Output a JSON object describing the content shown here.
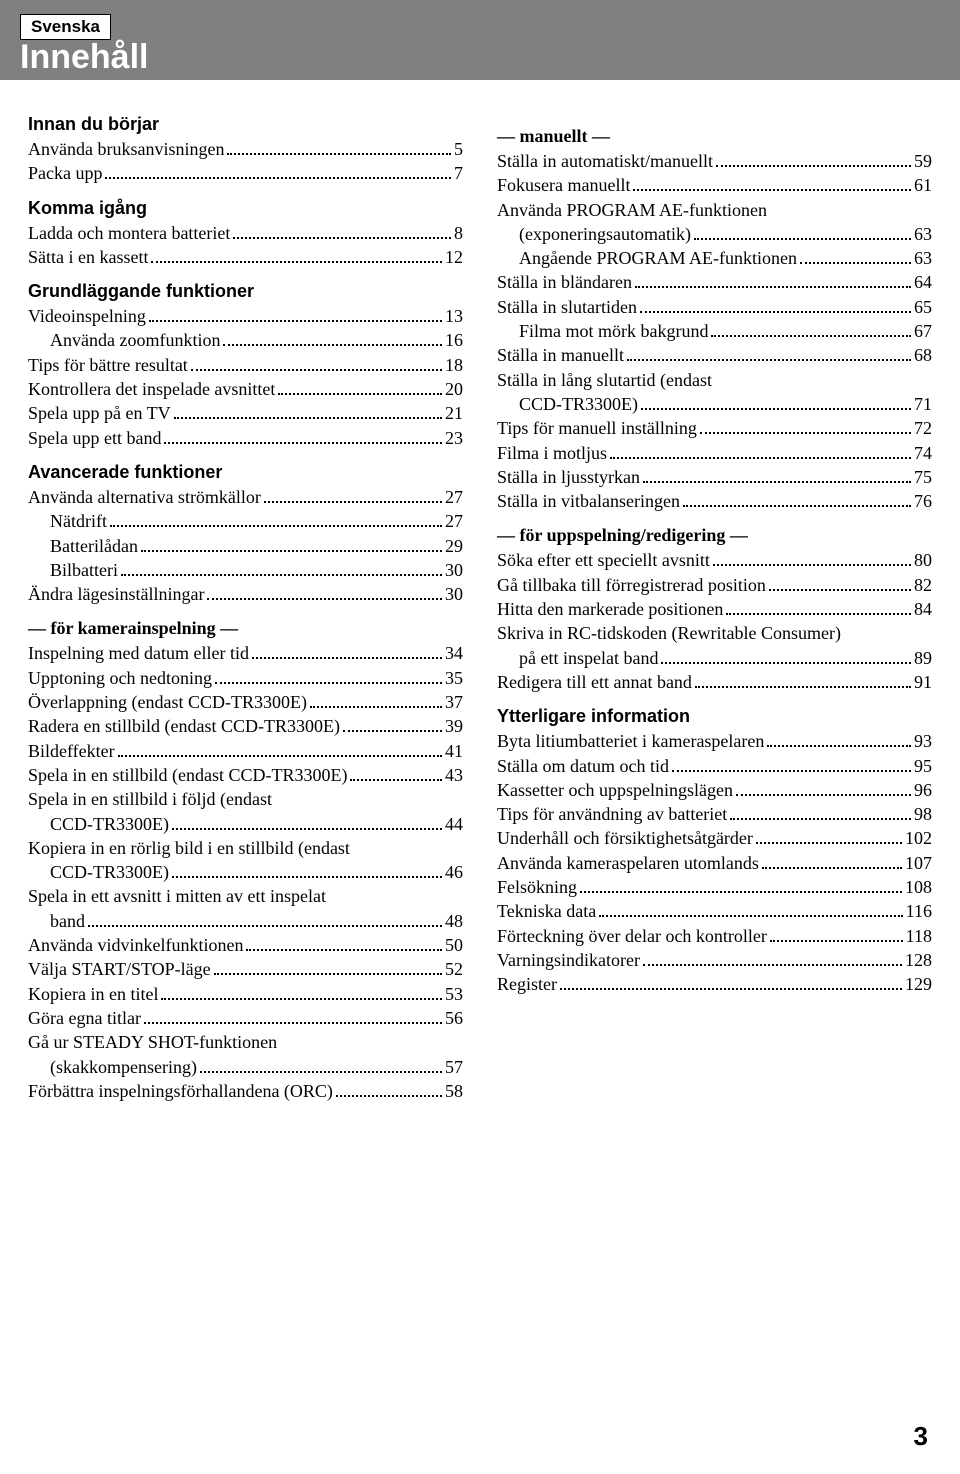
{
  "header": {
    "language": "Svenska",
    "title": "Innehåll"
  },
  "page_number": "3",
  "col1": {
    "sec1": {
      "title": "Innan du börjar"
    },
    "sec1_items": [
      {
        "label": "Använda bruksanvisningen",
        "page": "5"
      },
      {
        "label": "Packa upp",
        "page": "7"
      }
    ],
    "sec2": {
      "title": "Komma igång"
    },
    "sec2_items": [
      {
        "label": "Ladda och montera batteriet",
        "page": "8"
      },
      {
        "label": "Sätta i en kassett",
        "page": "12"
      }
    ],
    "sec3": {
      "title": "Grundläggande funktioner"
    },
    "sec3_items": [
      {
        "label": "Videoinspelning",
        "page": "13"
      },
      {
        "label": "Använda zoomfunktion",
        "page": "16",
        "indent": true
      },
      {
        "label": "Tips för bättre resultat",
        "page": "18"
      },
      {
        "label": "Kontrollera det inspelade avsnittet",
        "page": "20"
      },
      {
        "label": "Spela upp på en TV",
        "page": "21"
      },
      {
        "label": "Spela upp ett band",
        "page": "23"
      }
    ],
    "sec4": {
      "title": "Avancerade funktioner"
    },
    "sec4_items": [
      {
        "label": "Använda alternativa strömkällor",
        "page": "27"
      },
      {
        "label": "Nätdrift",
        "page": "27",
        "indent": true
      },
      {
        "label": "Batterilådan",
        "page": "29",
        "indent": true
      },
      {
        "label": "Bilbatteri",
        "page": "30",
        "indent": true
      },
      {
        "label": "Ändra lägesinställningar",
        "page": "30"
      }
    ],
    "sub1": {
      "title": "— för kamerainspelning —"
    },
    "sub1_items": [
      {
        "label": "Inspelning med datum eller tid",
        "page": "34"
      },
      {
        "label": "Upptoning och nedtoning",
        "page": "35"
      },
      {
        "label": "Överlappning (endast CCD-TR3300E)",
        "page": "37"
      },
      {
        "label": "Radera en stillbild (endast CCD-TR3300E)",
        "page": "39"
      },
      {
        "label": "Bildeffekter",
        "page": "41"
      },
      {
        "label": "Spela in en stillbild (endast CCD-TR3300E)",
        "page": "43"
      },
      {
        "label_cont": "Spela in en stillbild i följd (endast",
        "label": "CCD-TR3300E)",
        "page": "44",
        "indent": true
      },
      {
        "label_cont": "Kopiera in en rörlig bild i en stillbild (endast",
        "label": "CCD-TR3300E)",
        "page": "46",
        "indent": true
      },
      {
        "label_cont": "Spela in ett avsnitt i mitten av ett inspelat",
        "label": "band",
        "page": "48",
        "indent": true
      },
      {
        "label": "Använda vidvinkelfunktionen",
        "page": "50"
      },
      {
        "label": "Välja START/STOP-läge",
        "page": "52"
      },
      {
        "label": "Kopiera in en titel",
        "page": "53"
      },
      {
        "label": "Göra egna titlar",
        "page": "56"
      },
      {
        "label_cont": "Gå ur STEADY SHOT-funktionen",
        "label": "(skakkompensering)",
        "page": "57",
        "indent": true
      },
      {
        "label": "Förbättra inspelningsförhallandena (ORC)",
        "page": "58"
      }
    ]
  },
  "col2": {
    "sub2": {
      "title": "— manuellt —"
    },
    "sub2_items": [
      {
        "label": "Ställa in automatiskt/manuellt",
        "page": "59"
      },
      {
        "label": "Fokusera manuellt",
        "page": "61"
      },
      {
        "label_cont": "Använda PROGRAM AE-funktionen",
        "label": "(exponeringsautomatik)",
        "page": "63",
        "indent": true
      },
      {
        "label": "Angående PROGRAM AE-funktionen",
        "page": "63",
        "indent": true
      },
      {
        "label": "Ställa in bländaren",
        "page": "64"
      },
      {
        "label": "Ställa in slutartiden",
        "page": "65"
      },
      {
        "label": "Filma mot mörk bakgrund",
        "page": "67",
        "indent": true
      },
      {
        "label": "Ställa in manuellt",
        "page": "68"
      },
      {
        "label_cont": "Ställa in lång slutartid (endast",
        "label": "CCD-TR3300E)",
        "page": "71",
        "indent": true
      },
      {
        "label": "Tips för manuell inställning",
        "page": "72"
      },
      {
        "label": "Filma i motljus",
        "page": "74"
      },
      {
        "label": "Ställa in ljusstyrkan",
        "page": "75"
      },
      {
        "label": "Ställa in vitbalanseringen",
        "page": "76"
      }
    ],
    "sub3": {
      "title": "— för uppspelning/redigering —"
    },
    "sub3_items": [
      {
        "label": "Söka efter ett speciellt avsnitt",
        "page": "80"
      },
      {
        "label": "Gå tillbaka till förregistrerad position",
        "page": "82"
      },
      {
        "label": "Hitta den markerade positionen",
        "page": "84"
      },
      {
        "label_cont": "Skriva in RC-tidskoden (Rewritable Consumer)",
        "label": "på ett inspelat band",
        "page": "89",
        "indent": true
      },
      {
        "label": "Redigera till ett annat band",
        "page": "91"
      }
    ],
    "sec5": {
      "title": "Ytterligare information"
    },
    "sec5_items": [
      {
        "label": "Byta litiumbatteriet i kameraspelaren",
        "page": "93"
      },
      {
        "label": "Ställa om datum och tid",
        "page": "95"
      },
      {
        "label": "Kassetter och uppspelningslägen",
        "page": "96"
      },
      {
        "label": "Tips för användning av batteriet",
        "page": "98"
      },
      {
        "label": "Underhåll och försiktighetsåtgärder",
        "page": "102"
      },
      {
        "label": "Använda kameraspelaren utomlands",
        "page": "107"
      },
      {
        "label": "Felsökning",
        "page": "108"
      },
      {
        "label": "Tekniska data",
        "page": "116"
      },
      {
        "label": "Förteckning över delar och kontroller",
        "page": "118"
      },
      {
        "label": "Varningsindikatorer",
        "page": "128"
      },
      {
        "label": "Register",
        "page": "129"
      }
    ]
  }
}
